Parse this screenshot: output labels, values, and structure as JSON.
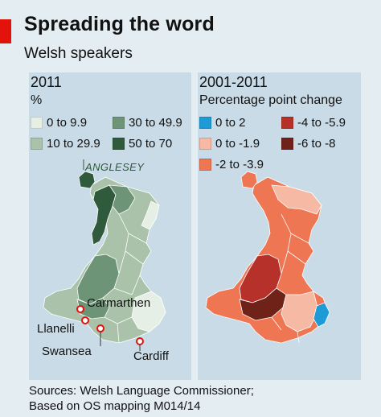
{
  "header": {
    "title": "Spreading the word",
    "subtitle": "Welsh speakers"
  },
  "left_panel": {
    "title": "2011",
    "unit": "%",
    "legend": [
      {
        "label": "0 to 9.9",
        "color": "#e6efe6"
      },
      {
        "label": "30 to 49.9",
        "color": "#6e9478"
      },
      {
        "label": "10 to 29.9",
        "color": "#a9c2a9"
      },
      {
        "label": "50 to 70",
        "color": "#2f5a3c"
      }
    ],
    "places": {
      "anglesey": "ANGLESEY",
      "carmarthen": "Carmarthen",
      "llanelli": "Llanelli",
      "swansea": "Swansea",
      "cardiff": "Cardiff"
    }
  },
  "right_panel": {
    "title": "2001-2011",
    "unit": "Percentage point change",
    "legend": [
      {
        "label": "0 to 2",
        "color": "#1e9ad6"
      },
      {
        "label": "-4 to -5.9",
        "color": "#b5312a"
      },
      {
        "label": "0 to -1.9",
        "color": "#f6b9a3"
      },
      {
        "label": "-6 to -8",
        "color": "#6f2318"
      },
      {
        "label": "-2 to -3.9",
        "color": "#ee7653"
      }
    ]
  },
  "footer": {
    "line1": "Sources: Welsh Language Commissioner;",
    "line2": "Based on OS mapping M014/14"
  }
}
